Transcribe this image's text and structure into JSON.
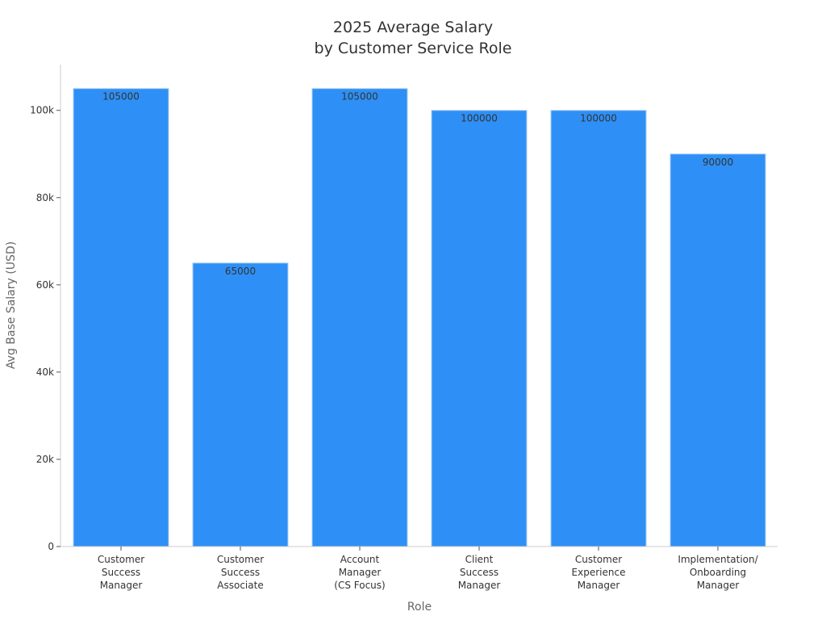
{
  "chart_data": {
    "type": "bar",
    "title_lines": [
      "2025 Average Salary",
      "by Customer Service Role"
    ],
    "xlabel": "Role",
    "ylabel": "Avg Base Salary (USD)",
    "categories": [
      [
        "Customer",
        "Success",
        "Manager"
      ],
      [
        "Customer",
        "Success",
        "Associate"
      ],
      [
        "Account",
        "Manager",
        "(CS Focus)"
      ],
      [
        "Client",
        "Success",
        "Manager"
      ],
      [
        "Customer",
        "Experience",
        "Manager"
      ],
      [
        "Implementation/",
        "Onboarding",
        "Manager"
      ]
    ],
    "values": [
      105000,
      65000,
      105000,
      100000,
      100000,
      90000
    ],
    "data_labels": [
      "105000",
      "65000",
      "105000",
      "100000",
      "100000",
      "90000"
    ],
    "ylim": [
      0,
      110500
    ],
    "yticks": [
      0,
      20000,
      40000,
      60000,
      80000,
      100000
    ],
    "ytick_labels": [
      "0",
      "20k",
      "40k",
      "60k",
      "80k",
      "100k"
    ],
    "grid": false,
    "colors": {
      "bar": "#2e90f6",
      "bar_edge": "#a9cdf7",
      "axis": "#cccccc",
      "tick": "#555555"
    }
  }
}
